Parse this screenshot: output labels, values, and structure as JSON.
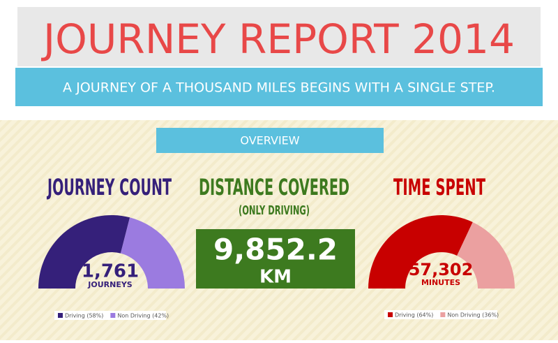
{
  "header": {
    "title": "JOURNEY REPORT 2014",
    "subtitle": "A JOURNEY OF A THOUSAND MILES BEGINS WITH A SINGLE STEP."
  },
  "overview": {
    "label": "OVERVIEW",
    "journey_count": {
      "title": "JOURNEY COUNT",
      "total": "1,761",
      "unit": "JOURNEYS",
      "segments": [
        {
          "label": "Driving (58%)",
          "value": 58,
          "color": "#35207a"
        },
        {
          "label": "Non Driving (42%)",
          "value": 42,
          "color": "#9b7be0"
        }
      ]
    },
    "distance": {
      "title": "DISTANCE COVERED",
      "subtitle": "(ONLY DRIVING)",
      "total": "9,852.2",
      "unit": "KM"
    },
    "time_spent": {
      "title": "TIME SPENT",
      "total": "57,302",
      "unit": "MINUTES",
      "segments": [
        {
          "label": "Driving (64%)",
          "value": 64,
          "color": "#c80000"
        },
        {
          "label": "Non Driving (36%)",
          "value": 36,
          "color": "#eba0a0"
        }
      ]
    }
  }
}
